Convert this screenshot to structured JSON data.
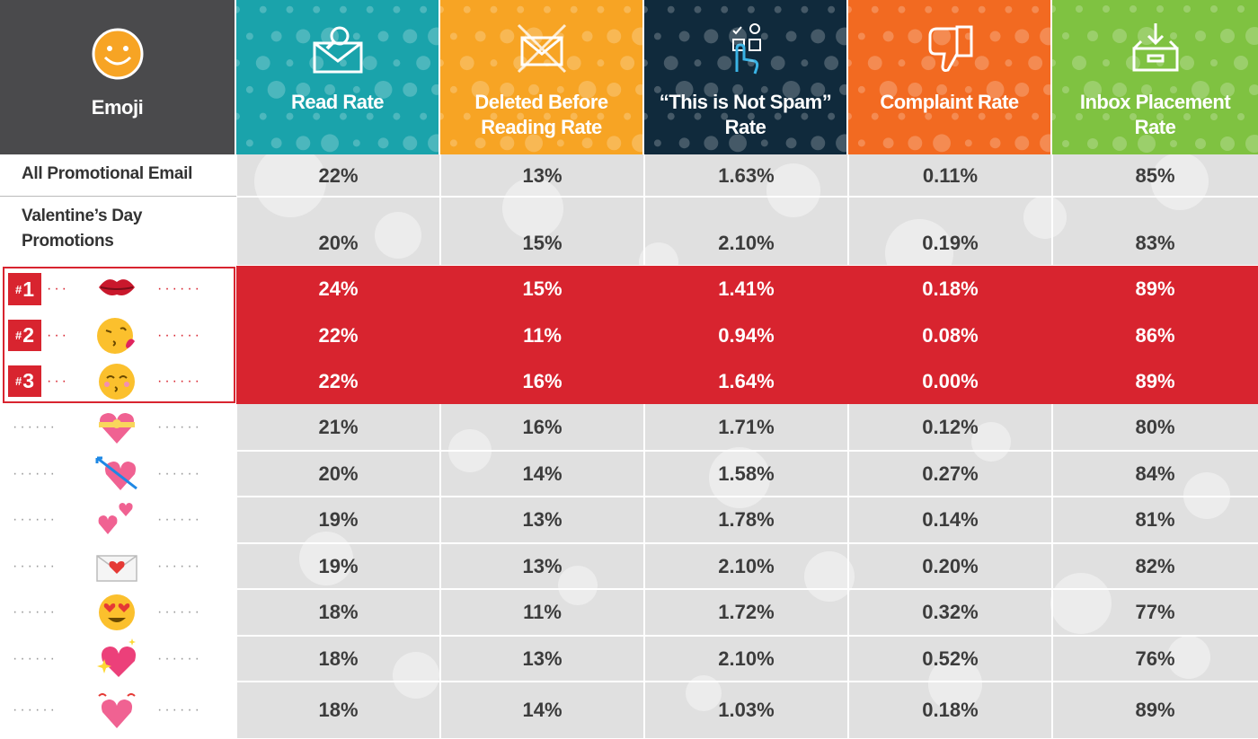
{
  "colors": {
    "emoji_header": "#4a4a4c",
    "read_rate": "#1aa3ab",
    "deleted": "#f7a424",
    "not_spam": "#102a3c",
    "complaint": "#f26a21",
    "inbox": "#7fc241",
    "highlight": "#d8242f",
    "table_bg": "#e0e0e0"
  },
  "chart_data": {
    "type": "table",
    "columns": [
      {
        "key": "emoji",
        "label": "Emoji",
        "icon": "smiley-face-icon"
      },
      {
        "key": "read_rate",
        "label": "Read Rate",
        "icon": "envelope-search-icon"
      },
      {
        "key": "deleted",
        "label": "Deleted Before Reading Rate",
        "icon": "envelope-delete-icon"
      },
      {
        "key": "not_spam",
        "label": "“This is Not Spam” Rate",
        "icon": "hand-pointer-icon"
      },
      {
        "key": "complaint",
        "label": "Complaint Rate",
        "icon": "thumbs-down-icon"
      },
      {
        "key": "inbox",
        "label": "Inbox Placement Rate",
        "icon": "inbox-tray-icon"
      }
    ],
    "rows": [
      {
        "label": "All Promotional Email",
        "rank": null,
        "emoji": null,
        "values": [
          "22%",
          "13%",
          "1.63%",
          "0.11%",
          "85%"
        ]
      },
      {
        "label": "Valentine’s Day Promotions",
        "rank": null,
        "emoji": null,
        "values": [
          "20%",
          "15%",
          "2.10%",
          "0.19%",
          "83%"
        ]
      },
      {
        "label": null,
        "rank": "1",
        "emoji": "kiss-mark",
        "values": [
          "24%",
          "15%",
          "1.41%",
          "0.18%",
          "89%"
        ]
      },
      {
        "label": null,
        "rank": "2",
        "emoji": "face-blowing-kiss",
        "values": [
          "22%",
          "11%",
          "0.94%",
          "0.08%",
          "86%"
        ]
      },
      {
        "label": null,
        "rank": "3",
        "emoji": "kissing-face-smiling-eyes",
        "values": [
          "22%",
          "16%",
          "1.64%",
          "0.00%",
          "89%"
        ]
      },
      {
        "label": null,
        "rank": null,
        "emoji": "heart-with-ribbon",
        "values": [
          "21%",
          "16%",
          "1.71%",
          "0.12%",
          "80%"
        ]
      },
      {
        "label": null,
        "rank": null,
        "emoji": "heart-with-arrow",
        "values": [
          "20%",
          "14%",
          "1.58%",
          "0.27%",
          "84%"
        ]
      },
      {
        "label": null,
        "rank": null,
        "emoji": "two-hearts",
        "values": [
          "19%",
          "13%",
          "1.78%",
          "0.14%",
          "81%"
        ]
      },
      {
        "label": null,
        "rank": null,
        "emoji": "love-letter",
        "values": [
          "19%",
          "13%",
          "2.10%",
          "0.20%",
          "82%"
        ]
      },
      {
        "label": null,
        "rank": null,
        "emoji": "smiling-face-heart-eyes",
        "values": [
          "18%",
          "11%",
          "1.72%",
          "0.32%",
          "77%"
        ]
      },
      {
        "label": null,
        "rank": null,
        "emoji": "sparkling-heart",
        "values": [
          "18%",
          "13%",
          "2.10%",
          "0.52%",
          "76%"
        ]
      },
      {
        "label": null,
        "rank": null,
        "emoji": "beating-heart",
        "values": [
          "18%",
          "14%",
          "1.03%",
          "0.18%",
          "89%"
        ]
      }
    ]
  }
}
